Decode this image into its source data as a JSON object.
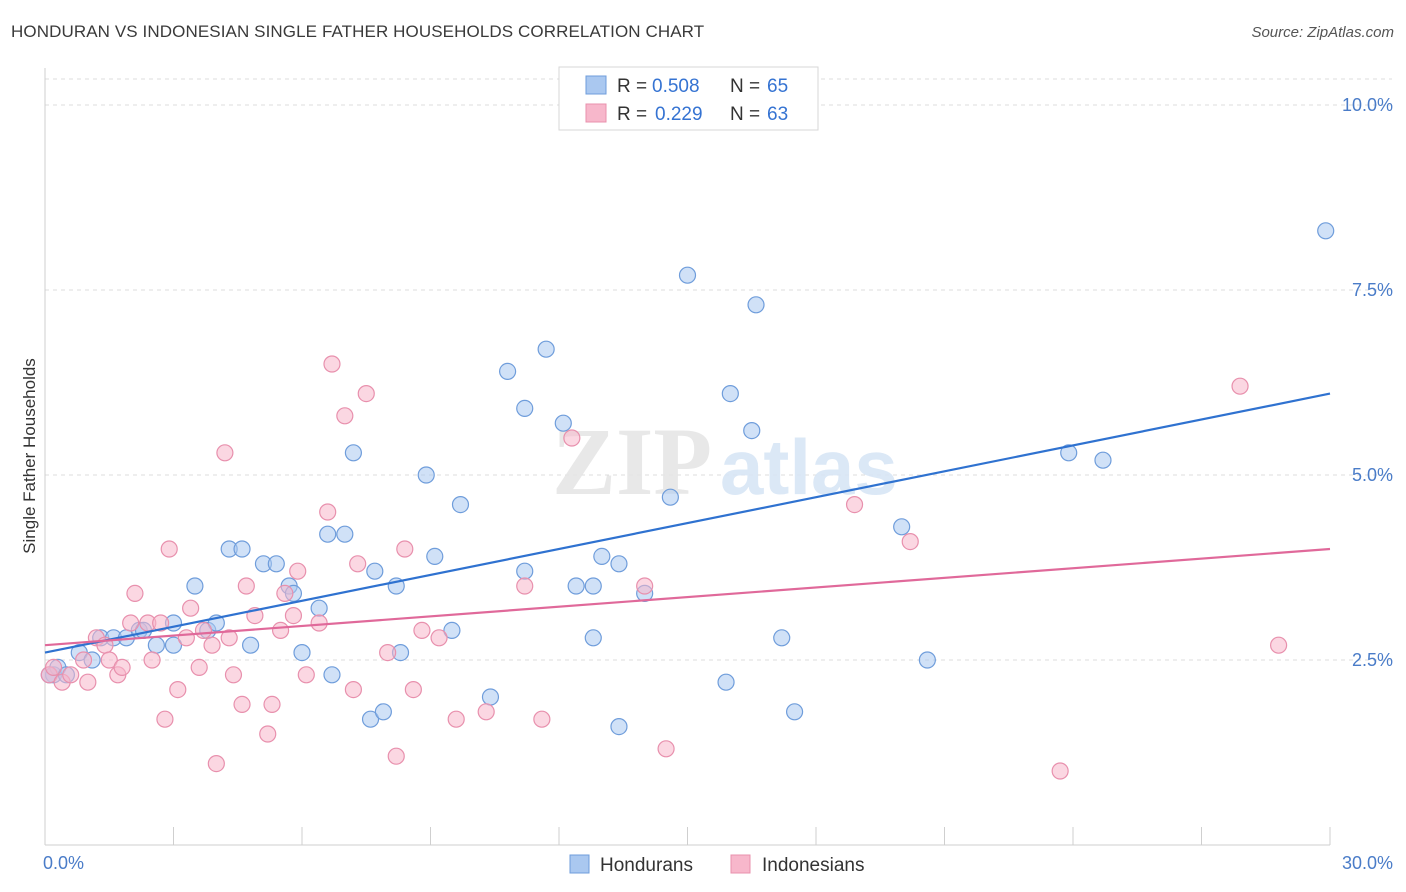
{
  "title": "HONDURAN VS INDONESIAN SINGLE FATHER HOUSEHOLDS CORRELATION CHART",
  "source": "Source: ZipAtlas.com",
  "watermark": {
    "zip": "ZIP",
    "atlas": "atlas"
  },
  "colors": {
    "blue_fill": "#aac8f0",
    "blue_stroke": "#6f9ddb",
    "blue_line": "#2f72d0",
    "pink_fill": "#f7b7cb",
    "pink_stroke": "#e890ad",
    "pink_line": "#e0699a",
    "grid": "#dcdcdc",
    "tick_text": "#4a7cc8",
    "value_text": "#3573d2"
  },
  "legend_top": {
    "rows": [
      {
        "r_label": "R =",
        "r_value": "0.508",
        "n_label": "N =",
        "n_value": "65",
        "series": "blue"
      },
      {
        "r_label": "R =",
        "r_value": "0.229",
        "n_label": "N =",
        "n_value": "63",
        "series": "pink"
      }
    ]
  },
  "legend_bottom": {
    "items": [
      "Hondurans",
      "Indonesians"
    ]
  },
  "chart_data": {
    "type": "scatter",
    "title": "HONDURAN VS INDONESIAN SINGLE FATHER HOUSEHOLDS CORRELATION CHART",
    "xlabel": "",
    "ylabel": "Single Father Households",
    "xlim": [
      0,
      30
    ],
    "ylim": [
      0,
      10.5
    ],
    "x_tick_labels": {
      "left": "0.0%",
      "right": "30.0%"
    },
    "y_ticks": [
      {
        "value": 2.5,
        "label": "2.5%"
      },
      {
        "value": 5.0,
        "label": "5.0%"
      },
      {
        "value": 7.5,
        "label": "7.5%"
      },
      {
        "value": 10.0,
        "label": "10.0%"
      }
    ],
    "legend_position": "top-center",
    "grid": "horizontal-dashed",
    "series": [
      {
        "name": "Hondurans",
        "color": "blue",
        "trend": {
          "x": [
            0,
            30
          ],
          "y": [
            2.6,
            6.1
          ]
        },
        "points": [
          [
            0.2,
            2.3
          ],
          [
            0.3,
            2.4
          ],
          [
            0.5,
            2.3
          ],
          [
            0.8,
            2.6
          ],
          [
            1.1,
            2.5
          ],
          [
            1.3,
            2.8
          ],
          [
            1.6,
            2.8
          ],
          [
            1.9,
            2.8
          ],
          [
            2.2,
            2.9
          ],
          [
            2.3,
            2.9
          ],
          [
            2.6,
            2.7
          ],
          [
            3.0,
            2.7
          ],
          [
            3.0,
            3.0
          ],
          [
            3.5,
            3.5
          ],
          [
            3.8,
            2.9
          ],
          [
            4.0,
            3.0
          ],
          [
            4.3,
            4.0
          ],
          [
            4.6,
            4.0
          ],
          [
            4.8,
            2.7
          ],
          [
            5.1,
            3.8
          ],
          [
            5.4,
            3.8
          ],
          [
            5.7,
            3.5
          ],
          [
            5.8,
            3.4
          ],
          [
            6.0,
            2.6
          ],
          [
            6.4,
            3.2
          ],
          [
            6.6,
            4.2
          ],
          [
            6.7,
            2.3
          ],
          [
            7.0,
            4.2
          ],
          [
            7.2,
            5.3
          ],
          [
            7.6,
            1.7
          ],
          [
            7.7,
            3.7
          ],
          [
            7.9,
            1.8
          ],
          [
            8.2,
            3.5
          ],
          [
            8.3,
            2.6
          ],
          [
            8.9,
            5.0
          ],
          [
            9.1,
            3.9
          ],
          [
            9.5,
            2.9
          ],
          [
            9.7,
            4.6
          ],
          [
            10.4,
            2.0
          ],
          [
            10.8,
            6.4
          ],
          [
            11.2,
            5.9
          ],
          [
            11.2,
            3.7
          ],
          [
            11.7,
            6.7
          ],
          [
            12.1,
            5.7
          ],
          [
            12.4,
            3.5
          ],
          [
            12.8,
            2.8
          ],
          [
            12.8,
            3.5
          ],
          [
            13.0,
            3.9
          ],
          [
            13.4,
            1.6
          ],
          [
            13.4,
            3.8
          ],
          [
            14.0,
            3.4
          ],
          [
            14.6,
            4.7
          ],
          [
            15.0,
            7.7
          ],
          [
            15.9,
            2.2
          ],
          [
            16.0,
            6.1
          ],
          [
            16.5,
            5.6
          ],
          [
            16.6,
            7.3
          ],
          [
            17.2,
            2.8
          ],
          [
            17.5,
            1.8
          ],
          [
            20.0,
            4.3
          ],
          [
            20.6,
            2.5
          ],
          [
            23.9,
            5.3
          ],
          [
            24.7,
            5.2
          ],
          [
            29.9,
            8.3
          ],
          [
            0.1,
            2.3
          ]
        ]
      },
      {
        "name": "Indonesians",
        "color": "pink",
        "trend": {
          "x": [
            0,
            30
          ],
          "y": [
            2.7,
            4.0
          ]
        },
        "points": [
          [
            0.1,
            2.3
          ],
          [
            0.4,
            2.2
          ],
          [
            0.6,
            2.3
          ],
          [
            0.9,
            2.5
          ],
          [
            1.2,
            2.8
          ],
          [
            1.4,
            2.7
          ],
          [
            1.5,
            2.5
          ],
          [
            1.7,
            2.3
          ],
          [
            1.8,
            2.4
          ],
          [
            2.0,
            3.0
          ],
          [
            2.1,
            3.4
          ],
          [
            2.4,
            3.0
          ],
          [
            2.5,
            2.5
          ],
          [
            2.7,
            3.0
          ],
          [
            2.8,
            1.7
          ],
          [
            2.9,
            4.0
          ],
          [
            3.1,
            2.1
          ],
          [
            3.3,
            2.8
          ],
          [
            3.4,
            3.2
          ],
          [
            3.6,
            2.4
          ],
          [
            3.9,
            2.7
          ],
          [
            4.0,
            1.1
          ],
          [
            4.2,
            5.3
          ],
          [
            4.3,
            2.8
          ],
          [
            4.4,
            2.3
          ],
          [
            4.6,
            1.9
          ],
          [
            4.7,
            3.5
          ],
          [
            4.9,
            3.1
          ],
          [
            5.2,
            1.5
          ],
          [
            5.3,
            1.9
          ],
          [
            5.5,
            2.9
          ],
          [
            5.6,
            3.4
          ],
          [
            5.8,
            3.1
          ],
          [
            5.9,
            3.7
          ],
          [
            6.4,
            3.0
          ],
          [
            6.6,
            4.5
          ],
          [
            6.7,
            6.5
          ],
          [
            7.0,
            5.8
          ],
          [
            7.2,
            2.1
          ],
          [
            7.3,
            3.8
          ],
          [
            7.5,
            6.1
          ],
          [
            8.0,
            2.6
          ],
          [
            8.2,
            1.2
          ],
          [
            8.4,
            4.0
          ],
          [
            8.6,
            2.1
          ],
          [
            8.8,
            2.9
          ],
          [
            9.2,
            2.8
          ],
          [
            9.6,
            1.7
          ],
          [
            10.3,
            1.8
          ],
          [
            11.2,
            3.5
          ],
          [
            11.6,
            1.7
          ],
          [
            12.3,
            5.5
          ],
          [
            14.0,
            3.5
          ],
          [
            14.5,
            1.3
          ],
          [
            18.9,
            4.6
          ],
          [
            20.2,
            4.1
          ],
          [
            23.7,
            1.0
          ],
          [
            27.9,
            6.2
          ],
          [
            28.8,
            2.7
          ],
          [
            0.2,
            2.4
          ],
          [
            1.0,
            2.2
          ],
          [
            3.7,
            2.9
          ],
          [
            6.1,
            2.3
          ]
        ]
      }
    ]
  }
}
